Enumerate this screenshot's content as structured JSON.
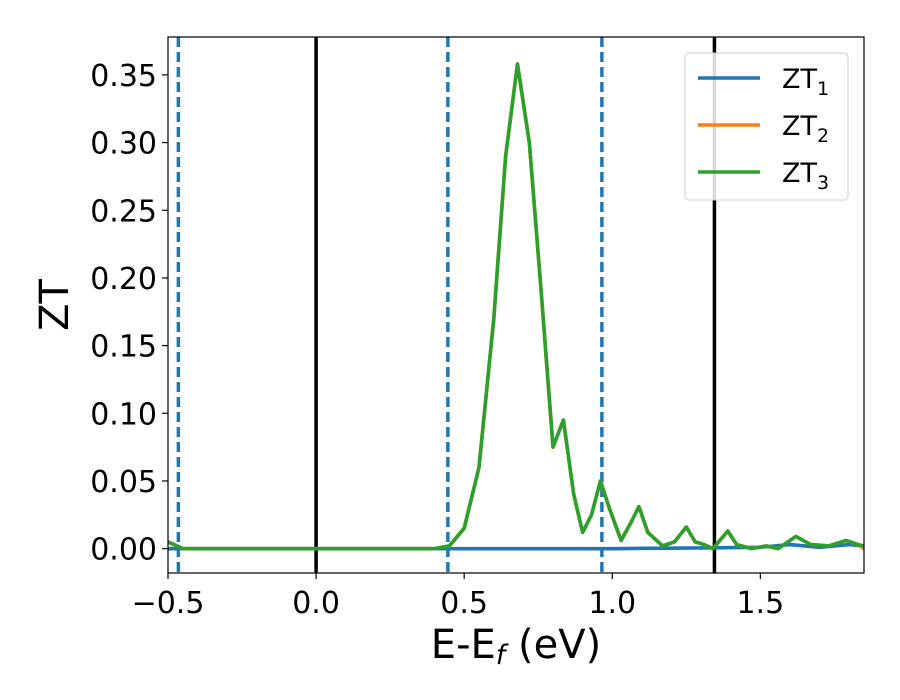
{
  "chart_data": {
    "type": "line",
    "title": "",
    "xlabel": "E-E",
    "xlabel_sub": "f",
    "xlabel_unit": " (eV)",
    "ylabel": "ZT",
    "xlim": [
      -0.5,
      1.85
    ],
    "ylim": [
      -0.018,
      0.378
    ],
    "x_ticks": [
      -0.5,
      0.0,
      0.5,
      1.0,
      1.5
    ],
    "x_tick_labels": [
      "−0.5",
      "0.0",
      "0.5",
      "1.0",
      "1.5"
    ],
    "y_ticks": [
      0.0,
      0.05,
      0.1,
      0.15,
      0.2,
      0.25,
      0.3,
      0.35
    ],
    "y_tick_labels": [
      "0.00",
      "0.05",
      "0.10",
      "0.15",
      "0.20",
      "0.25",
      "0.30",
      "0.35"
    ],
    "grid": false,
    "legend_position": "top-right",
    "vertical_lines": [
      {
        "x": -0.465,
        "style": "dashed",
        "color": "#1f77b4"
      },
      {
        "x": 0.0,
        "style": "solid",
        "color": "#000000"
      },
      {
        "x": 0.445,
        "style": "dashed",
        "color": "#1f77b4"
      },
      {
        "x": 0.965,
        "style": "dashed",
        "color": "#1f77b4"
      },
      {
        "x": 1.345,
        "style": "solid",
        "color": "#000000"
      }
    ],
    "series": [
      {
        "name": "ZT",
        "sub": "1",
        "color": "#1f77b4",
        "points": [
          [
            -0.5,
            0.0
          ],
          [
            0.0,
            0.0
          ],
          [
            0.5,
            0.0
          ],
          [
            1.0,
            0.0
          ],
          [
            1.3,
            0.0005
          ],
          [
            1.5,
            0.001
          ],
          [
            1.6,
            0.003
          ],
          [
            1.7,
            0.001
          ],
          [
            1.8,
            0.003
          ],
          [
            1.85,
            0.002
          ]
        ]
      },
      {
        "name": "ZT",
        "sub": "2",
        "color": "#ff7f0e",
        "points": [
          [
            -0.5,
            0.005
          ],
          [
            -0.45,
            0.0
          ],
          [
            0.4,
            0.0
          ],
          [
            0.45,
            0.002
          ],
          [
            0.5,
            0.015
          ],
          [
            0.55,
            0.06
          ],
          [
            0.6,
            0.17
          ],
          [
            0.64,
            0.29
          ],
          [
            0.68,
            0.358
          ],
          [
            0.72,
            0.3
          ],
          [
            0.76,
            0.19
          ],
          [
            0.8,
            0.075
          ],
          [
            0.835,
            0.095
          ],
          [
            0.87,
            0.04
          ],
          [
            0.9,
            0.012
          ],
          [
            0.93,
            0.025
          ],
          [
            0.96,
            0.05
          ],
          [
            0.99,
            0.03
          ],
          [
            1.03,
            0.006
          ],
          [
            1.06,
            0.018
          ],
          [
            1.09,
            0.031
          ],
          [
            1.12,
            0.012
          ],
          [
            1.17,
            0.002
          ],
          [
            1.21,
            0.005
          ],
          [
            1.25,
            0.016
          ],
          [
            1.28,
            0.005
          ],
          [
            1.31,
            0.003
          ],
          [
            1.34,
            0.0
          ],
          [
            1.39,
            0.013
          ],
          [
            1.42,
            0.003
          ],
          [
            1.47,
            0.0
          ],
          [
            1.52,
            0.002
          ],
          [
            1.56,
            0.0
          ],
          [
            1.62,
            0.009
          ],
          [
            1.67,
            0.003
          ],
          [
            1.73,
            0.002
          ],
          [
            1.79,
            0.006
          ],
          [
            1.83,
            0.003
          ],
          [
            1.85,
            0.0
          ]
        ]
      },
      {
        "name": "ZT",
        "sub": "3",
        "color": "#2ca02c",
        "points": [
          [
            -0.5,
            0.005
          ],
          [
            -0.45,
            0.0
          ],
          [
            0.4,
            0.0
          ],
          [
            0.45,
            0.002
          ],
          [
            0.5,
            0.015
          ],
          [
            0.55,
            0.06
          ],
          [
            0.6,
            0.17
          ],
          [
            0.64,
            0.29
          ],
          [
            0.68,
            0.358
          ],
          [
            0.72,
            0.3
          ],
          [
            0.76,
            0.19
          ],
          [
            0.8,
            0.075
          ],
          [
            0.835,
            0.095
          ],
          [
            0.87,
            0.04
          ],
          [
            0.9,
            0.012
          ],
          [
            0.93,
            0.025
          ],
          [
            0.96,
            0.05
          ],
          [
            0.99,
            0.03
          ],
          [
            1.03,
            0.006
          ],
          [
            1.06,
            0.018
          ],
          [
            1.09,
            0.031
          ],
          [
            1.12,
            0.012
          ],
          [
            1.17,
            0.002
          ],
          [
            1.21,
            0.005
          ],
          [
            1.25,
            0.016
          ],
          [
            1.28,
            0.005
          ],
          [
            1.31,
            0.003
          ],
          [
            1.34,
            0.0
          ],
          [
            1.39,
            0.013
          ],
          [
            1.42,
            0.003
          ],
          [
            1.47,
            0.0
          ],
          [
            1.52,
            0.002
          ],
          [
            1.56,
            0.0
          ],
          [
            1.62,
            0.009
          ],
          [
            1.67,
            0.003
          ],
          [
            1.73,
            0.002
          ],
          [
            1.79,
            0.006
          ],
          [
            1.83,
            0.003
          ],
          [
            1.85,
            0.002
          ]
        ]
      }
    ]
  }
}
